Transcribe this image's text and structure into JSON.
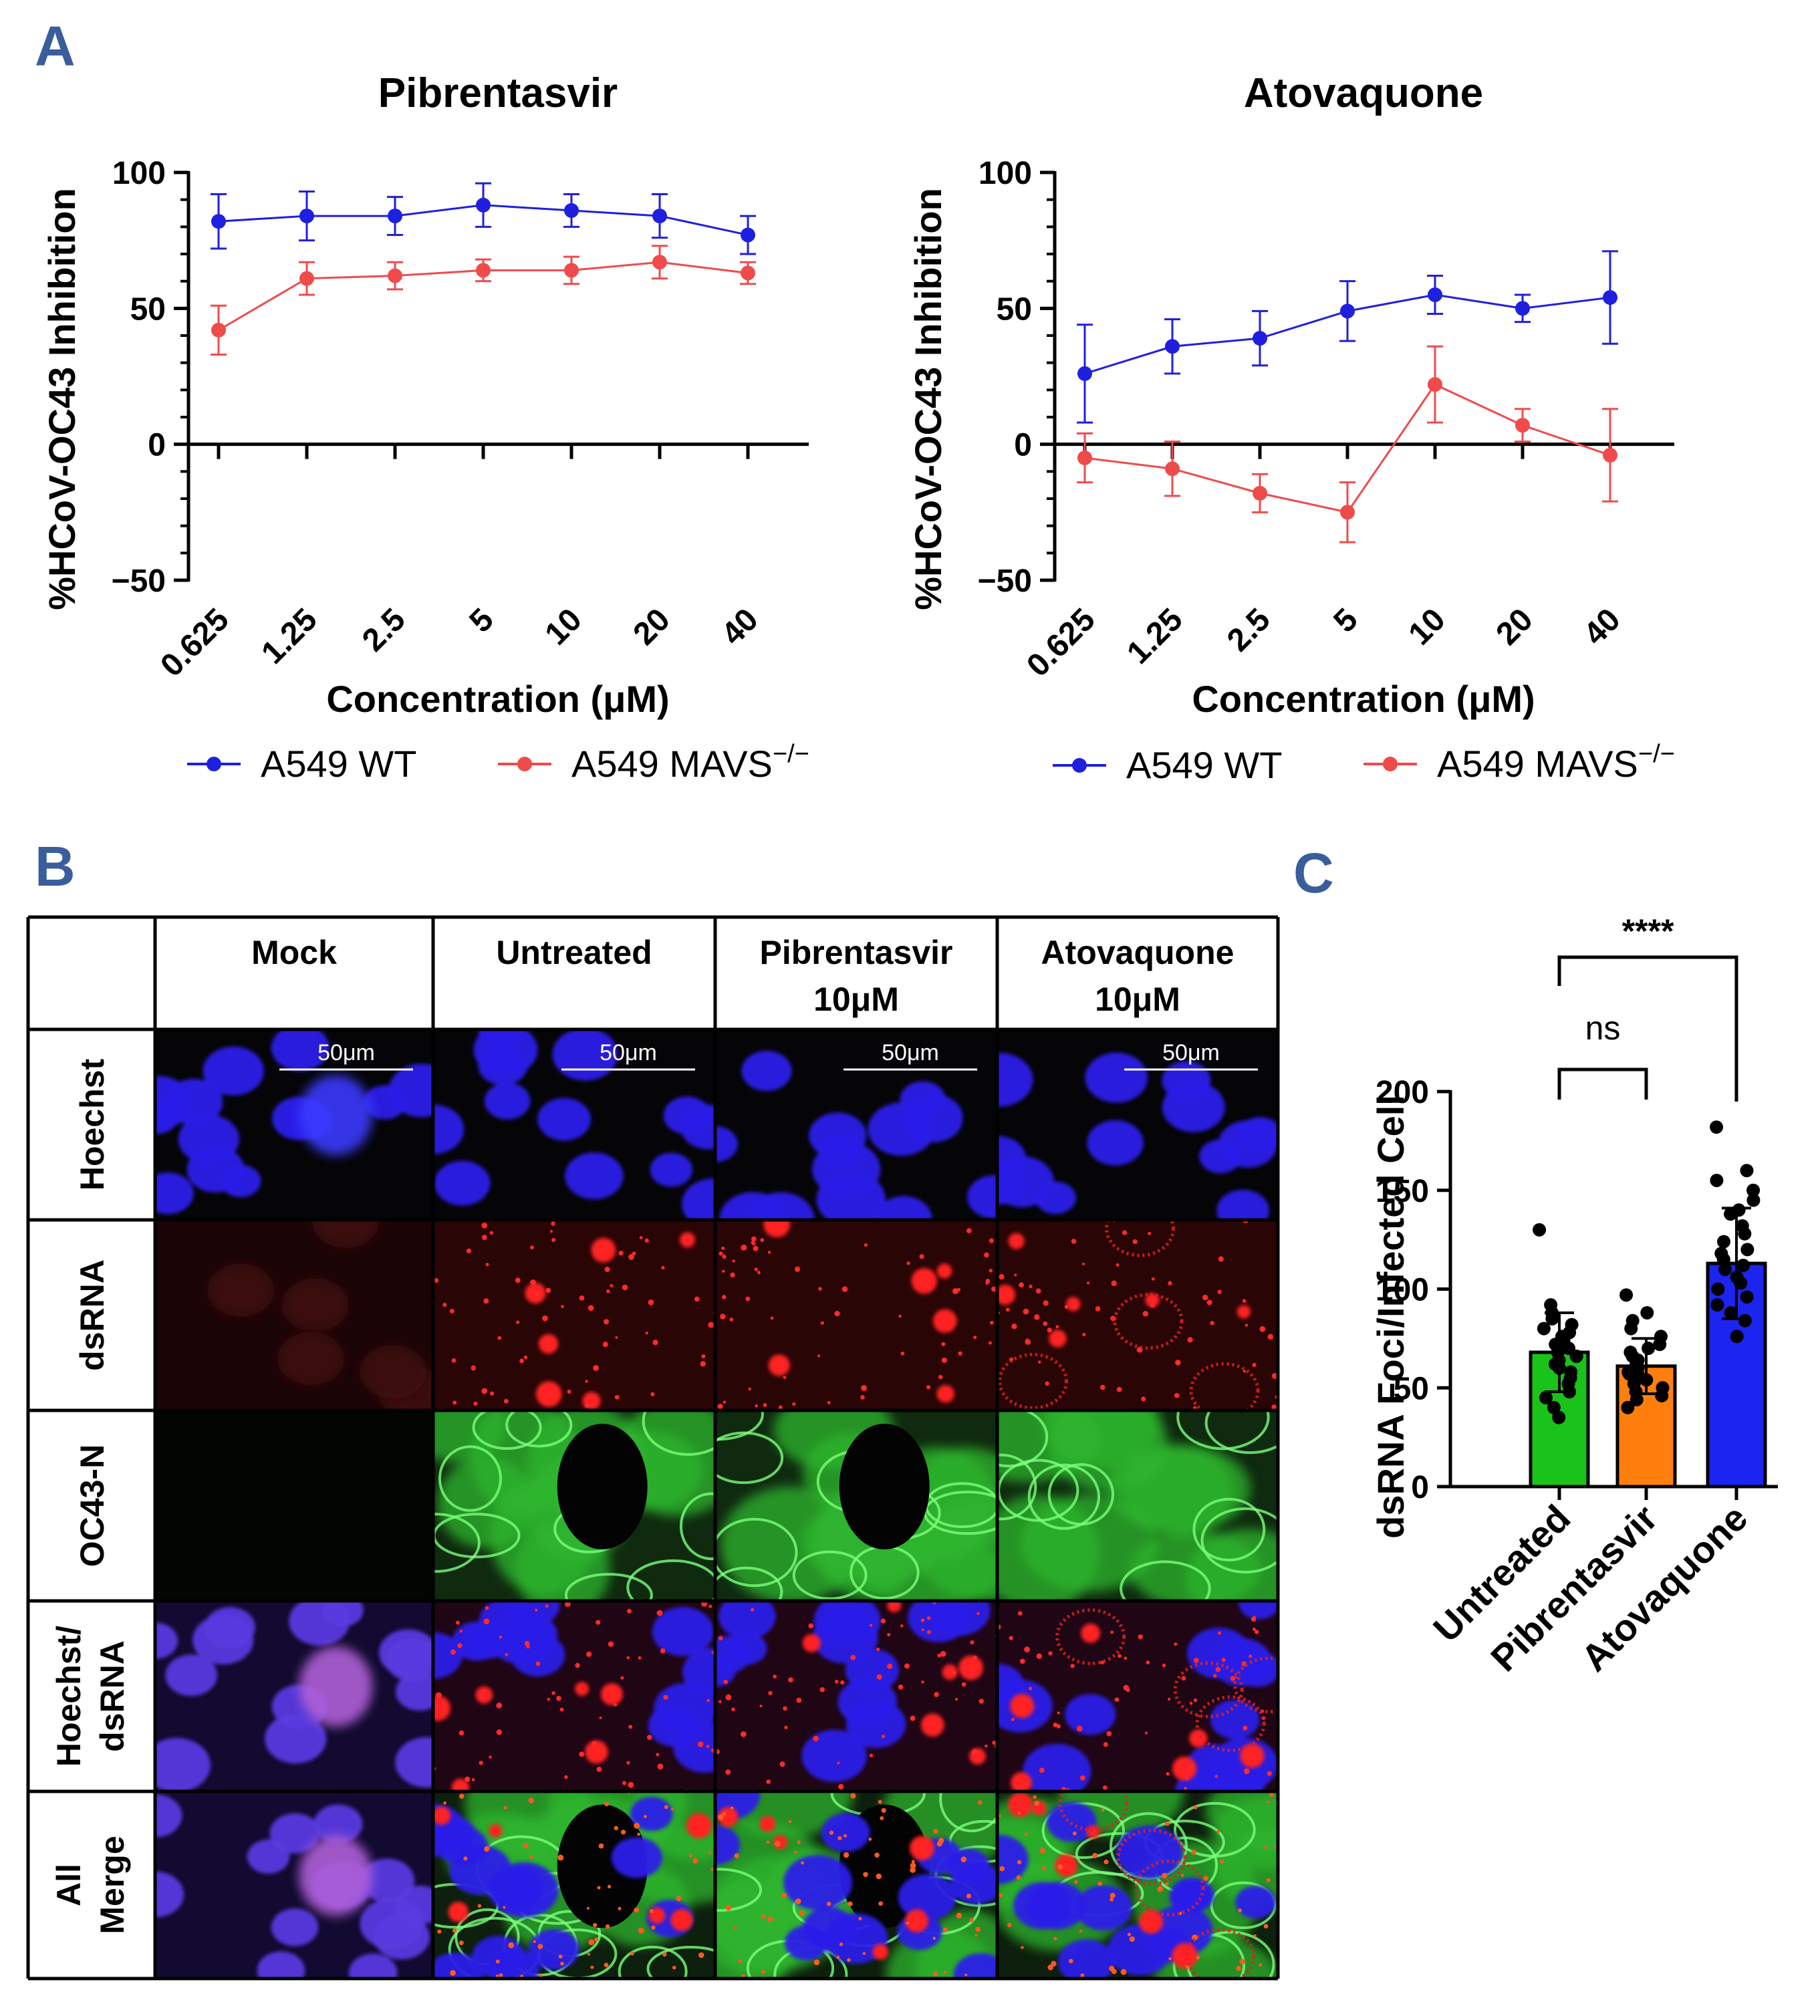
{
  "panel_letters": {
    "a": "A",
    "b": "B",
    "c": "C"
  },
  "chart_data": [
    {
      "type": "line",
      "title": "Pibrentasvir",
      "xlabel": "Concentration (μM)",
      "ylabel": "%HCoV-OC43 Inhibition",
      "categories": [
        "0.625",
        "1.25",
        "2.5",
        "5",
        "10",
        "20",
        "40"
      ],
      "ylim": [
        -50,
        100
      ],
      "yticks": [
        "100",
        "50",
        "0",
        "−50"
      ],
      "series": [
        {
          "name": "A549 WT",
          "color": "#1f1fe0",
          "values": [
            82,
            84,
            84,
            88,
            86,
            84,
            77
          ],
          "errors": [
            10,
            9,
            7,
            8,
            6,
            8,
            7
          ]
        },
        {
          "name": "A549 MAVS−/−",
          "legend_label": "A549 MAVS",
          "legend_sup": "−/−",
          "color": "#ef4b4b",
          "values": [
            42,
            61,
            62,
            64,
            64,
            67,
            63
          ],
          "errors": [
            9,
            6,
            5,
            4,
            5,
            6,
            4
          ]
        }
      ]
    },
    {
      "type": "line",
      "title": "Atovaquone",
      "xlabel": "Concentration (μM)",
      "ylabel": "%HCoV-OC43 Inhibition",
      "categories": [
        "0.625",
        "1.25",
        "2.5",
        "5",
        "10",
        "20",
        "40"
      ],
      "ylim": [
        -50,
        100
      ],
      "yticks": [
        "100",
        "50",
        "0",
        "−50"
      ],
      "series": [
        {
          "name": "A549 WT",
          "color": "#1f1fe0",
          "values": [
            26,
            36,
            39,
            49,
            55,
            50,
            54
          ],
          "errors": [
            18,
            10,
            10,
            11,
            7,
            5,
            17
          ]
        },
        {
          "name": "A549 MAVS−/−",
          "legend_label": "A549 MAVS",
          "legend_sup": "−/−",
          "color": "#ef4b4b",
          "values": [
            -5,
            -9,
            -18,
            -25,
            22,
            7,
            -4
          ],
          "errors": [
            9,
            10,
            7,
            11,
            14,
            6,
            17
          ]
        }
      ]
    },
    {
      "type": "bar",
      "ylabel": "dsRNA Foci/Infected Cell",
      "categories": [
        "Untreated",
        "Pibrentasvir",
        "Atovaquone"
      ],
      "values": [
        68,
        61,
        113
      ],
      "errors": [
        20,
        14,
        28
      ],
      "colors": [
        "#19c319",
        "#ff7f0e",
        "#1c24f0"
      ],
      "ylim": [
        0,
        200
      ],
      "yticks": [
        "200",
        "150",
        "100",
        "50",
        "0"
      ],
      "points": [
        [
          130,
          92,
          88,
          85,
          82,
          80,
          78,
          76,
          74,
          72,
          70,
          68,
          66,
          64,
          62,
          60,
          58,
          55,
          52,
          48,
          45,
          40,
          35
        ],
        [
          97,
          88,
          84,
          80,
          76,
          72,
          70,
          68,
          66,
          64,
          62,
          60,
          58,
          57,
          56,
          54,
          52,
          50,
          48,
          46,
          44,
          40
        ],
        [
          182,
          160,
          155,
          150,
          145,
          140,
          138,
          132,
          128,
          124,
          120,
          118,
          115,
          112,
          110,
          106,
          103,
          100,
          96,
          92,
          88,
          84,
          76
        ]
      ],
      "significance": [
        {
          "label": "ns",
          "from": 0,
          "to": 1
        },
        {
          "label": "****",
          "from": 0,
          "to": 2
        }
      ]
    }
  ],
  "micrograph_panel": {
    "columns": [
      {
        "line1": "Mock",
        "line2": ""
      },
      {
        "line1": "Untreated",
        "line2": ""
      },
      {
        "line1": "Pibrentasvir",
        "line2": "10μM"
      },
      {
        "line1": "Atovaquone",
        "line2": "10μM"
      }
    ],
    "rows": [
      {
        "line1": "Hoechst",
        "line2": ""
      },
      {
        "line1": "dsRNA",
        "line2": ""
      },
      {
        "line1": "OC43-N",
        "line2": ""
      },
      {
        "line1": "Hoechst/",
        "line2": "dsRNA"
      },
      {
        "line1": "All",
        "line2": "Merge"
      }
    ],
    "scale_bar_label": "50μm"
  }
}
